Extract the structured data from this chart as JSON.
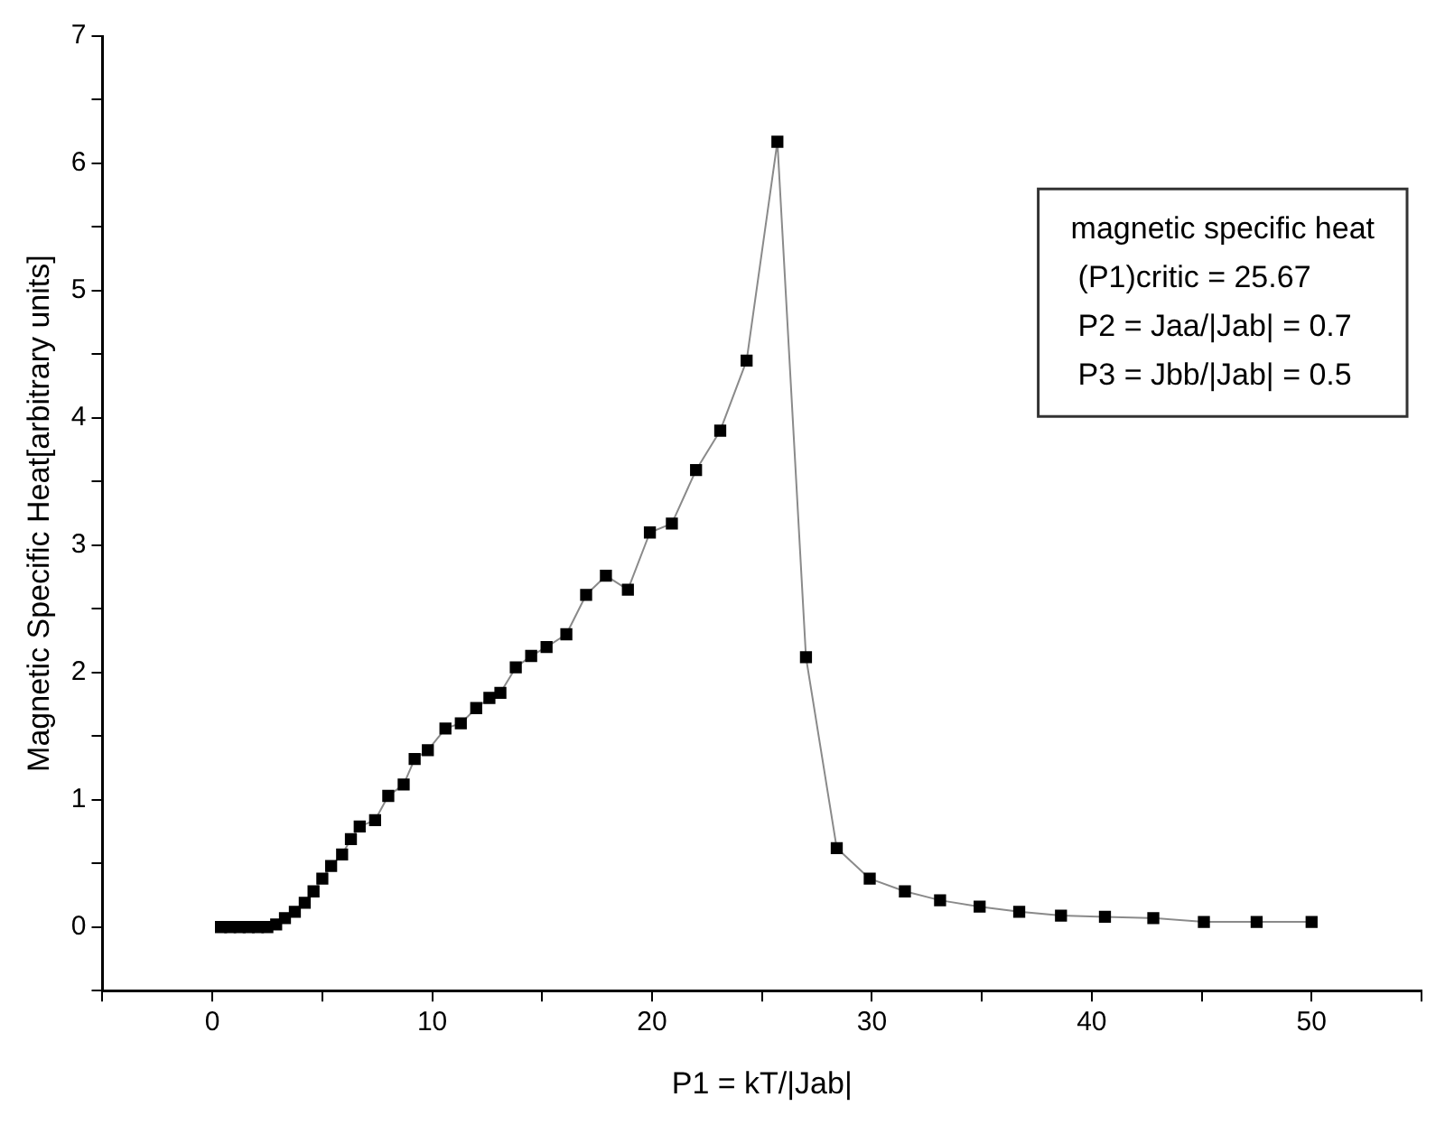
{
  "chart_data": {
    "type": "line",
    "xlabel": "P1 = kT/|Jab|",
    "ylabel": "Magnetic Specific Heat[arbitrary units]",
    "annotations": [
      "magnetic specific heat",
      "(P1)critic = 25.67",
      "P2 = Jaa/|Jab| = 0.7",
      "P3 = Jbb/|Jab| = 0.5"
    ],
    "x": [
      0.39,
      0.81,
      1.24,
      1.65,
      2.07,
      2.5,
      2.9,
      3.3,
      3.75,
      4.2,
      4.6,
      5.0,
      5.4,
      5.9,
      6.3,
      6.7,
      7.4,
      8.0,
      8.7,
      9.2,
      9.8,
      10.6,
      11.3,
      12.0,
      12.6,
      13.1,
      13.8,
      14.5,
      15.2,
      16.1,
      17.0,
      17.9,
      18.9,
      19.9,
      20.9,
      22.0,
      23.1,
      24.3,
      25.7,
      27.0,
      28.4,
      29.9,
      31.5,
      33.1,
      34.9,
      36.7,
      38.6,
      40.6,
      42.8,
      45.1,
      47.5,
      50.0
    ],
    "series": [
      {
        "color": "#000000",
        "values": [
          0.0,
          0.0,
          0.0,
          0.0,
          0.0,
          0.0,
          0.02,
          0.07,
          0.12,
          0.19,
          0.28,
          0.38,
          0.48,
          0.57,
          0.69,
          0.79,
          0.84,
          1.03,
          1.12,
          1.32,
          1.39,
          1.56,
          1.6,
          1.72,
          1.8,
          1.84,
          2.04,
          2.13,
          2.2,
          2.3,
          2.61,
          2.76,
          2.65,
          3.1,
          3.17,
          3.59,
          3.9,
          4.45,
          6.17,
          2.12,
          0.62,
          0.38,
          0.28,
          0.21,
          0.16,
          0.12,
          0.09,
          0.08,
          0.07,
          0.04,
          0.04,
          0.04
        ]
      }
    ],
    "xlim": [
      -5,
      55
    ],
    "xticks": [
      {
        "value": -5,
        "label": null
      },
      0,
      {
        "value": 5,
        "label": null
      },
      10,
      {
        "value": 15,
        "label": null
      },
      20,
      {
        "value": 25,
        "label": null
      },
      30,
      {
        "value": 35,
        "label": null
      },
      40,
      {
        "value": 45,
        "label": null
      },
      50,
      {
        "value": 55,
        "label": null
      }
    ],
    "ylim": [
      -0.5,
      7
    ],
    "yticks": [
      {
        "value": -0.5,
        "label": null
      },
      0,
      {
        "value": 0.5,
        "label": null
      },
      1,
      {
        "value": 1.5,
        "label": null
      },
      2,
      {
        "value": 2.5,
        "label": null
      },
      3,
      {
        "value": 3.5,
        "label": null
      },
      4,
      {
        "value": 4.5,
        "label": null
      },
      5,
      {
        "value": 5.5,
        "label": null
      },
      6,
      {
        "value": 6.5,
        "label": null
      },
      7
    ],
    "grid": false,
    "legend": false,
    "marker": "square",
    "line_style": "solid"
  }
}
